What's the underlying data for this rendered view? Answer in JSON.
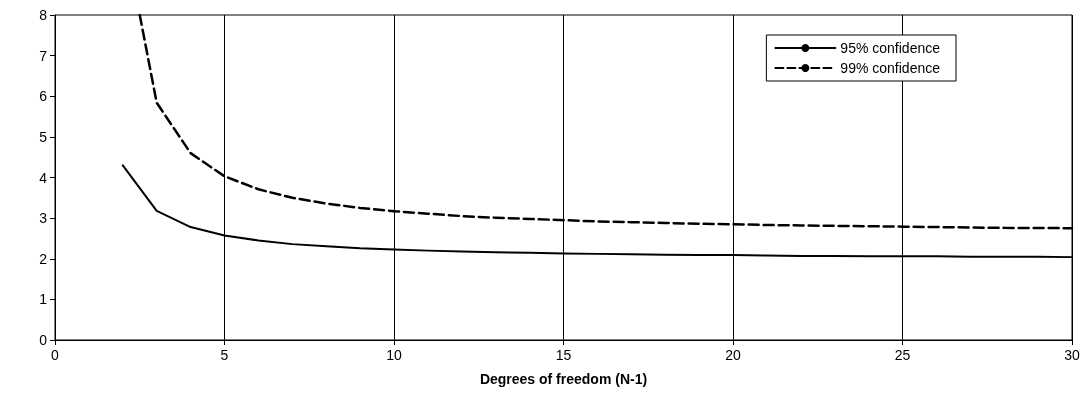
{
  "chart_data": {
    "type": "line",
    "xlabel": "Degrees of freedom (N-1)",
    "xlim": [
      0,
      30
    ],
    "xticks": [
      0,
      5,
      10,
      15,
      20,
      25,
      30
    ],
    "ylim": [
      0,
      8
    ],
    "yticks": [
      0,
      1,
      2,
      3,
      4,
      5,
      6,
      7,
      8
    ],
    "grid": "x",
    "legend": "top right",
    "marker": "none",
    "series": [
      {
        "name": "95% confidence",
        "color": "#000000",
        "line_style": "solid",
        "x": [
          2,
          3,
          4,
          5,
          6,
          7,
          8,
          9,
          10,
          11,
          12,
          13,
          14,
          15,
          16,
          17,
          18,
          19,
          20,
          21,
          22,
          23,
          24,
          25,
          26,
          27,
          28,
          29,
          30
        ],
        "values": [
          4.3,
          3.18,
          2.78,
          2.57,
          2.45,
          2.36,
          2.31,
          2.26,
          2.23,
          2.2,
          2.18,
          2.16,
          2.15,
          2.13,
          2.12,
          2.11,
          2.1,
          2.09,
          2.09,
          2.08,
          2.07,
          2.07,
          2.06,
          2.06,
          2.06,
          2.05,
          2.05,
          2.05,
          2.04
        ]
      },
      {
        "name": "99% confidence",
        "color": "#000000",
        "line_style": "dashed",
        "x": [
          2.5,
          3,
          4,
          5,
          6,
          7,
          8,
          9,
          10,
          11,
          12,
          13,
          14,
          15,
          16,
          17,
          18,
          19,
          20,
          21,
          22,
          23,
          24,
          25,
          26,
          27,
          28,
          29,
          30
        ],
        "values": [
          8,
          5.84,
          4.6,
          4.03,
          3.71,
          3.5,
          3.36,
          3.25,
          3.17,
          3.11,
          3.05,
          3.01,
          2.98,
          2.95,
          2.92,
          2.9,
          2.88,
          2.86,
          2.85,
          2.83,
          2.82,
          2.81,
          2.8,
          2.79,
          2.78,
          2.77,
          2.76,
          2.76,
          2.75
        ]
      }
    ]
  }
}
